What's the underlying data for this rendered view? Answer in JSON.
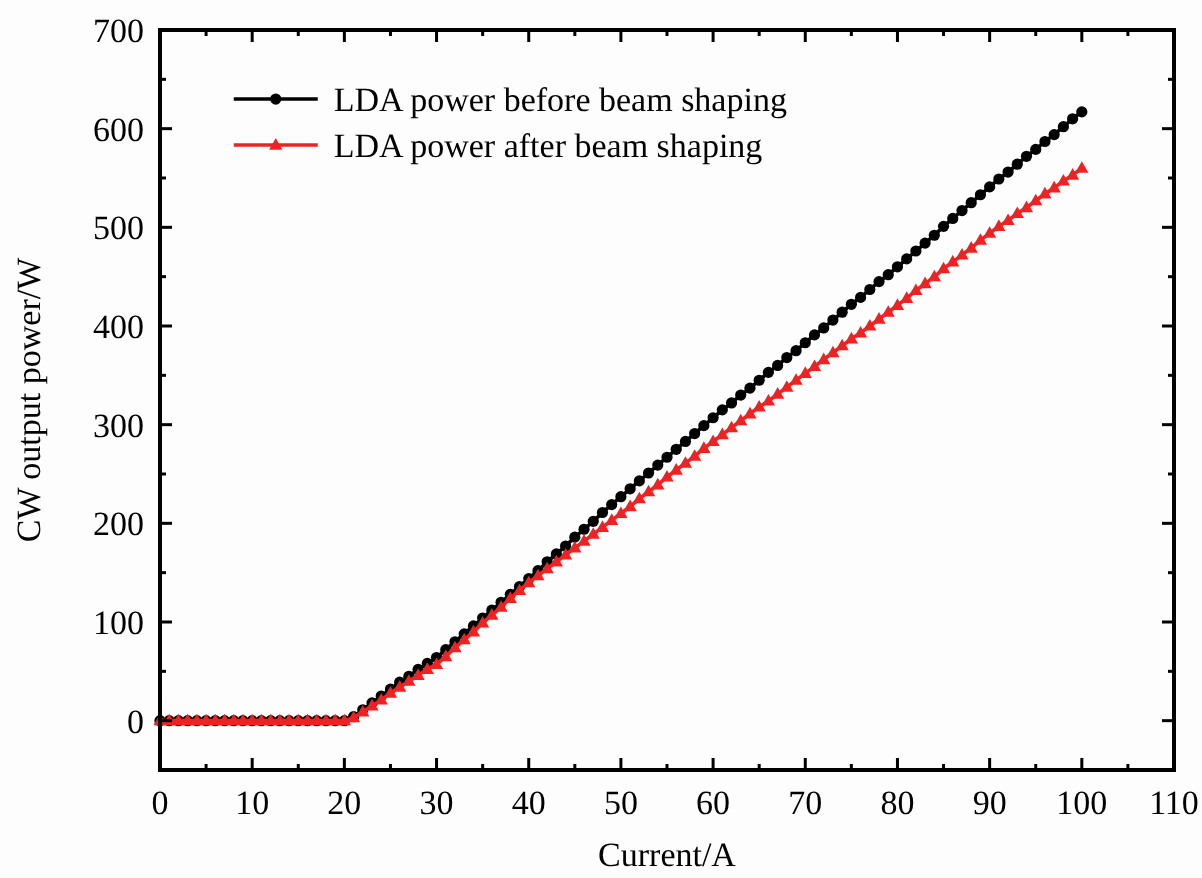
{
  "chart_data": {
    "type": "line",
    "xlabel": "Current/A",
    "ylabel": "CW output power/W",
    "x": [
      0,
      1,
      2,
      3,
      4,
      5,
      6,
      7,
      8,
      9,
      10,
      11,
      12,
      13,
      14,
      15,
      16,
      17,
      18,
      19,
      20,
      21,
      22,
      23,
      24,
      25,
      26,
      27,
      28,
      29,
      30,
      31,
      32,
      33,
      34,
      35,
      36,
      37,
      38,
      39,
      40,
      41,
      42,
      43,
      44,
      45,
      46,
      47,
      48,
      49,
      50,
      51,
      52,
      53,
      54,
      55,
      56,
      57,
      58,
      59,
      60,
      61,
      62,
      63,
      64,
      65,
      66,
      67,
      68,
      69,
      70,
      71,
      72,
      73,
      74,
      75,
      76,
      77,
      78,
      79,
      80,
      81,
      82,
      83,
      84,
      85,
      86,
      87,
      88,
      89,
      90,
      91,
      92,
      93,
      94,
      95,
      96,
      97,
      98,
      99,
      100
    ],
    "series": [
      {
        "name": "LDA power before beam shaping",
        "color": "#000000",
        "marker": "circle",
        "values": [
          0,
          0,
          0,
          0,
          0,
          0,
          0,
          0,
          0,
          0,
          0,
          0,
          0,
          0,
          0,
          0,
          0,
          0,
          0,
          0,
          0,
          4,
          11,
          18,
          25,
          32,
          39,
          45,
          52,
          58,
          64,
          72,
          80,
          88,
          96,
          104,
          112,
          120,
          128,
          136,
          144,
          152,
          161,
          169,
          177,
          186,
          194,
          202,
          211,
          219,
          227,
          235,
          243,
          251,
          259,
          267,
          275,
          283,
          291,
          299,
          307,
          315,
          322,
          330,
          337,
          345,
          353,
          360,
          368,
          375,
          383,
          391,
          398,
          406,
          414,
          422,
          429,
          437,
          445,
          452,
          460,
          468,
          476,
          484,
          492,
          501,
          509,
          517,
          525,
          533,
          541,
          549,
          556,
          564,
          572,
          579,
          587,
          594,
          602,
          610,
          617
        ]
      },
      {
        "name": "LDA power after beam shaping",
        "color": "#ee2222",
        "marker": "triangle",
        "values": [
          0,
          0,
          0,
          0,
          0,
          0,
          0,
          0,
          0,
          0,
          0,
          0,
          0,
          0,
          0,
          0,
          0,
          0,
          0,
          0,
          0,
          3,
          9,
          15,
          21,
          28,
          34,
          40,
          46,
          52,
          57,
          65,
          74,
          82,
          90,
          99,
          107,
          115,
          124,
          132,
          140,
          147,
          154,
          161,
          168,
          175,
          182,
          189,
          196,
          203,
          210,
          217,
          225,
          232,
          239,
          247,
          254,
          261,
          268,
          276,
          283,
          290,
          297,
          304,
          311,
          318,
          324,
          331,
          338,
          345,
          352,
          359,
          366,
          373,
          380,
          387,
          393,
          400,
          407,
          414,
          421,
          428,
          436,
          443,
          450,
          458,
          465,
          472,
          479,
          487,
          494,
          501,
          507,
          514,
          520,
          527,
          534,
          540,
          547,
          553,
          560
        ]
      }
    ],
    "xlim": [
      0,
      110
    ],
    "xticks": [
      0,
      {
        "value": 5,
        "label": null
      },
      10,
      {
        "value": 15,
        "label": null
      },
      20,
      {
        "value": 25,
        "label": null
      },
      30,
      {
        "value": 35,
        "label": null
      },
      40,
      {
        "value": 45,
        "label": null
      },
      50,
      {
        "value": 55,
        "label": null
      },
      60,
      {
        "value": 65,
        "label": null
      },
      70,
      {
        "value": 75,
        "label": null
      },
      80,
      {
        "value": 85,
        "label": null
      },
      90,
      {
        "value": 95,
        "label": null
      },
      100,
      {
        "value": 105,
        "label": null
      },
      110
    ],
    "ylim": [
      -50,
      700
    ],
    "yticks": [
      0,
      {
        "value": 50,
        "label": null
      },
      100,
      {
        "value": 150,
        "label": null
      },
      200,
      {
        "value": 250,
        "label": null
      },
      300,
      {
        "value": 350,
        "label": null
      },
      400,
      {
        "value": 450,
        "label": null
      },
      500,
      {
        "value": 550,
        "label": null
      },
      600,
      {
        "value": 650,
        "label": null
      },
      700
    ],
    "grid": false,
    "legend": "top left",
    "line_style": "solid"
  }
}
